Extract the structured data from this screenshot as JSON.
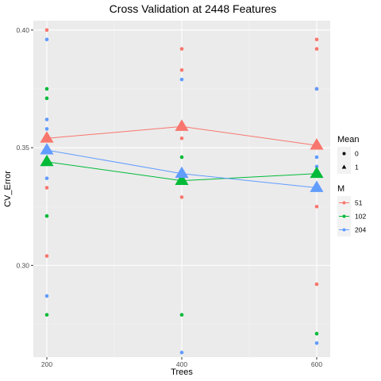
{
  "chart_data": {
    "type": "scatter",
    "title": "Cross Validation at 2448 Features",
    "xlabel": "Trees",
    "ylabel": "CV_Error",
    "x_ticks": [
      200,
      400,
      600
    ],
    "y_ticks": [
      0.3,
      0.35,
      0.4
    ],
    "y_tick_labels": [
      "0.30",
      "0.35",
      "0.40"
    ],
    "xlim": [
      180,
      620
    ],
    "ylim": [
      0.261,
      0.404
    ],
    "grid": true,
    "legend_position": "right",
    "mean_legend": {
      "title": "Mean",
      "entries": [
        {
          "label": "0",
          "shape": "circle"
        },
        {
          "label": "1",
          "shape": "triangle"
        }
      ]
    },
    "m_legend": {
      "title": "M",
      "entries": [
        {
          "label": "51",
          "color": "#F8766D"
        },
        {
          "label": "102",
          "color": "#00BA38"
        },
        {
          "label": "204",
          "color": "#619CFF"
        }
      ]
    },
    "series": [
      {
        "name": "51",
        "color": "#F8766D",
        "points": [
          {
            "x": 200,
            "y": 0.4
          },
          {
            "x": 200,
            "y": 0.333
          },
          {
            "x": 200,
            "y": 0.304
          },
          {
            "x": 400,
            "y": 0.392
          },
          {
            "x": 400,
            "y": 0.383
          },
          {
            "x": 400,
            "y": 0.354
          },
          {
            "x": 400,
            "y": 0.329
          },
          {
            "x": 600,
            "y": 0.396
          },
          {
            "x": 600,
            "y": 0.392
          },
          {
            "x": 600,
            "y": 0.375
          },
          {
            "x": 600,
            "y": 0.325
          },
          {
            "x": 600,
            "y": 0.292
          }
        ],
        "means": [
          {
            "x": 200,
            "y": 0.354
          },
          {
            "x": 400,
            "y": 0.359
          },
          {
            "x": 600,
            "y": 0.351
          }
        ]
      },
      {
        "name": "102",
        "color": "#00BA38",
        "points": [
          {
            "x": 200,
            "y": 0.375
          },
          {
            "x": 200,
            "y": 0.371
          },
          {
            "x": 200,
            "y": 0.321
          },
          {
            "x": 200,
            "y": 0.279
          },
          {
            "x": 400,
            "y": 0.346
          },
          {
            "x": 400,
            "y": 0.279
          },
          {
            "x": 600,
            "y": 0.271
          }
        ],
        "means": [
          {
            "x": 200,
            "y": 0.344
          },
          {
            "x": 400,
            "y": 0.336
          },
          {
            "x": 600,
            "y": 0.339
          }
        ]
      },
      {
        "name": "204",
        "color": "#619CFF",
        "points": [
          {
            "x": 200,
            "y": 0.396
          },
          {
            "x": 200,
            "y": 0.362
          },
          {
            "x": 200,
            "y": 0.358
          },
          {
            "x": 200,
            "y": 0.337
          },
          {
            "x": 200,
            "y": 0.287
          },
          {
            "x": 400,
            "y": 0.379
          },
          {
            "x": 400,
            "y": 0.358
          },
          {
            "x": 400,
            "y": 0.263
          },
          {
            "x": 600,
            "y": 0.375
          },
          {
            "x": 600,
            "y": 0.346
          },
          {
            "x": 600,
            "y": 0.342
          },
          {
            "x": 600,
            "y": 0.267
          }
        ],
        "means": [
          {
            "x": 200,
            "y": 0.349
          },
          {
            "x": 400,
            "y": 0.339
          },
          {
            "x": 600,
            "y": 0.333
          }
        ]
      }
    ]
  }
}
